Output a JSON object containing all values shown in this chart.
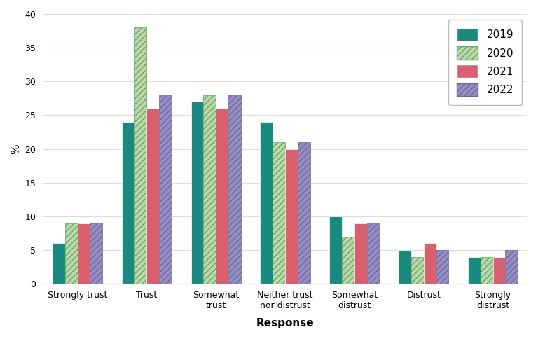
{
  "categories": [
    "Strongly trust",
    "Trust",
    "Somewhat\ntrust",
    "Neither trust\nnor distrust",
    "Somewhat\ndistrust",
    "Distrust",
    "Strongly\ndistrust"
  ],
  "years": [
    "2019",
    "2020",
    "2021",
    "2022"
  ],
  "values": {
    "2019": [
      6,
      24,
      27,
      24,
      10,
      5,
      4
    ],
    "2020": [
      9,
      38,
      28,
      21,
      7,
      4,
      4
    ],
    "2021": [
      9,
      26,
      26,
      20,
      9,
      6,
      4
    ],
    "2022": [
      9,
      28,
      28,
      21,
      9,
      5,
      5
    ]
  },
  "color_2019": "#1a8a7e",
  "color_2020": "#b8dba8",
  "color_2021": "#d95f6e",
  "color_2022": "#9590c0",
  "hatch_2020": "////",
  "hatch_2022": "////",
  "hatch_edgecolor_2020": "#6a9e6a",
  "hatch_edgecolor_2022": "#6a65a0",
  "ylabel": "%",
  "xlabel": "Response",
  "ylim": [
    0,
    40
  ],
  "yticks": [
    0,
    5,
    10,
    15,
    20,
    25,
    30,
    35,
    40
  ],
  "axis_fontsize": 11,
  "tick_fontsize": 9,
  "legend_fontsize": 11,
  "bar_width": 0.18,
  "background_color": "#ffffff",
  "grid_color": "#dddddd"
}
